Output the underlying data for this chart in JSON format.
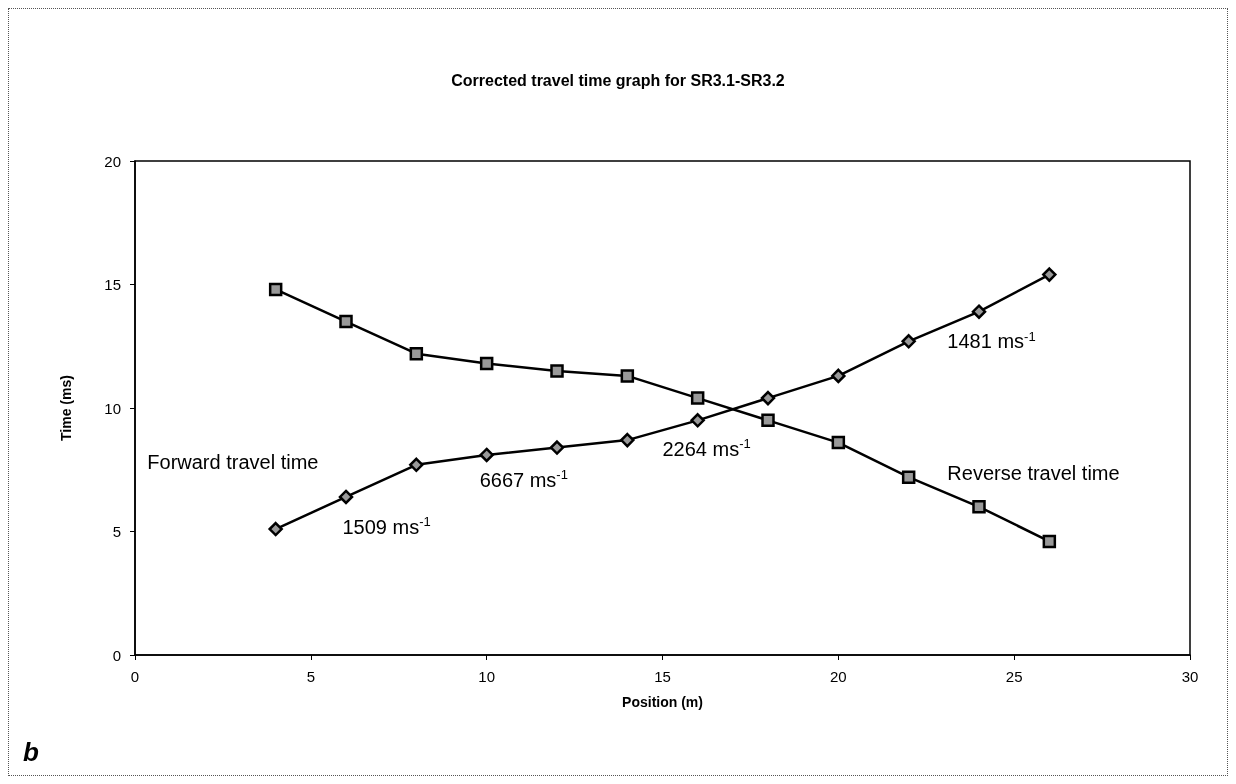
{
  "chart_data": {
    "type": "line",
    "title": "Corrected travel time graph for SR3.1-SR3.2",
    "xlabel": "Position (m)",
    "ylabel": "Time (ms)",
    "x": [
      4,
      6,
      8,
      10,
      12,
      14,
      16,
      18,
      20,
      22,
      24,
      26
    ],
    "series": [
      {
        "name": "Forward travel time",
        "color": "#000000",
        "marker": "diamond",
        "values": [
          5.1,
          6.4,
          7.7,
          8.1,
          8.4,
          8.7,
          9.5,
          10.4,
          11.3,
          12.7,
          13.9,
          15.4
        ]
      },
      {
        "name": "Reverse travel time",
        "color": "#000000",
        "marker": "square",
        "values": [
          14.8,
          13.5,
          12.2,
          11.8,
          11.5,
          11.3,
          10.4,
          9.5,
          8.6,
          7.2,
          6.0,
          4.6
        ]
      }
    ],
    "annotations": [
      "1509 ms$^{-1}$",
      "6667 ms$^{-1}$",
      "2264 ms$^{-1}$",
      "1481 ms$^{-1}$",
      "b"
    ],
    "xlim": [
      0,
      30
    ],
    "xticks": [
      0,
      5,
      10,
      15,
      20,
      25,
      30
    ],
    "ylim": [
      0,
      20
    ],
    "yticks": [
      0,
      5,
      10,
      15,
      20
    ],
    "grid": false,
    "legend": false,
    "line_style": "solid"
  }
}
